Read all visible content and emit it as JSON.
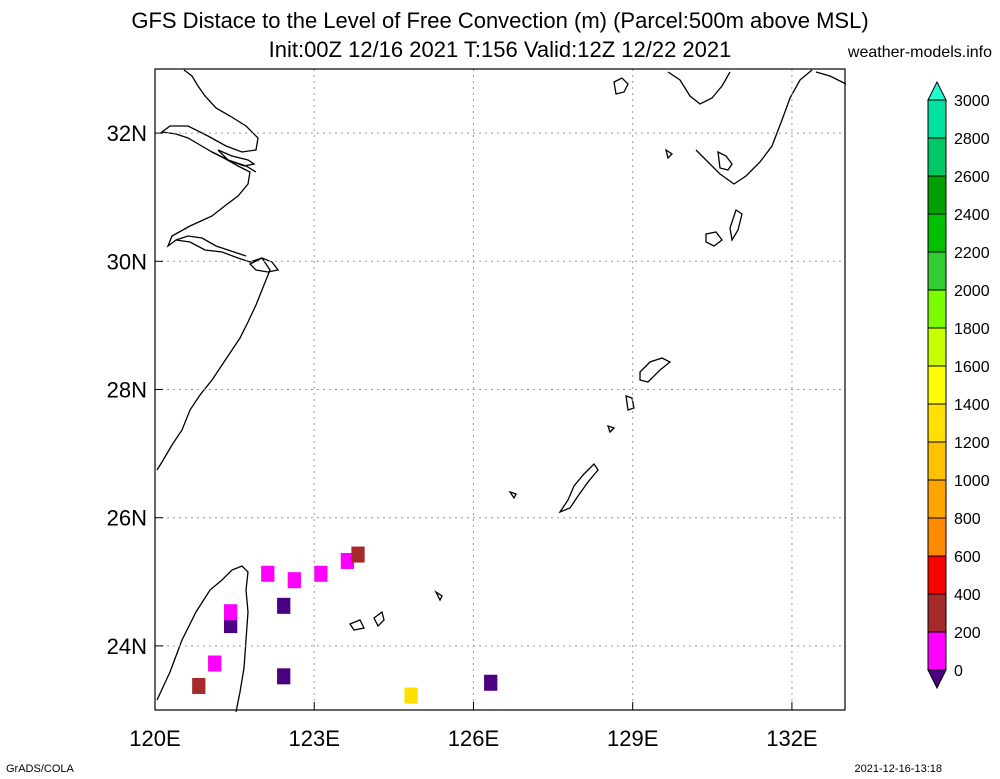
{
  "header": {
    "title_line1": "GFS Distace to the Level of Free Convection (m) (Parcel:500m above MSL)",
    "title_line2": "Init:00Z 12/16 2021 T:156 Valid:12Z 12/22 2021",
    "credit": "weather-models.info"
  },
  "footer": {
    "left": "GrADS/COLA",
    "right": "2021-12-16-13:18"
  },
  "map": {
    "lon_range": [
      120,
      133
    ],
    "lat_range": [
      23,
      33
    ],
    "lon_ticks": [
      {
        "value": 120,
        "label": "120E"
      },
      {
        "value": 123,
        "label": "123E"
      },
      {
        "value": 126,
        "label": "126E"
      },
      {
        "value": 129,
        "label": "129E"
      },
      {
        "value": 132,
        "label": "132E"
      }
    ],
    "lat_ticks": [
      {
        "value": 24,
        "label": "24N"
      },
      {
        "value": 26,
        "label": "26N"
      },
      {
        "value": 28,
        "label": "28N"
      },
      {
        "value": 30,
        "label": "30N"
      },
      {
        "value": 32,
        "label": "32N"
      }
    ],
    "grid": true
  },
  "colorbar": {
    "levels": [
      "0",
      "200",
      "400",
      "600",
      "800",
      "1000",
      "1200",
      "1400",
      "1600",
      "1800",
      "2000",
      "2200",
      "2400",
      "2600",
      "2800",
      "3000"
    ],
    "colors": [
      "#4b0082",
      "#ff00ff",
      "#a52a2a",
      "#ff0000",
      "#ff8c00",
      "#ffa500",
      "#ffc200",
      "#ffe000",
      "#ffff00",
      "#c8ff00",
      "#7cfc00",
      "#32cd32",
      "#00c000",
      "#00a000",
      "#00c864",
      "#00e0a0",
      "#20ffd0"
    ]
  },
  "fields": [
    {
      "lon": 120.7,
      "lat": 23.25,
      "cat": 2
    },
    {
      "lon": 121.0,
      "lat": 23.6,
      "cat": 1
    },
    {
      "lon": 121.3,
      "lat": 24.2,
      "cat": 0
    },
    {
      "lon": 121.3,
      "lat": 24.4,
      "cat": 1
    },
    {
      "lon": 122.0,
      "lat": 25.0,
      "cat": 1
    },
    {
      "lon": 122.3,
      "lat": 24.5,
      "cat": 0
    },
    {
      "lon": 122.3,
      "lat": 23.4,
      "cat": 0
    },
    {
      "lon": 122.5,
      "lat": 24.9,
      "cat": 1
    },
    {
      "lon": 123.0,
      "lat": 25.0,
      "cat": 1
    },
    {
      "lon": 123.5,
      "lat": 25.2,
      "cat": 1
    },
    {
      "lon": 123.7,
      "lat": 25.3,
      "cat": 2
    },
    {
      "lon": 124.7,
      "lat": 23.1,
      "cat": 7
    },
    {
      "lon": 126.2,
      "lat": 23.3,
      "cat": 0
    }
  ]
}
